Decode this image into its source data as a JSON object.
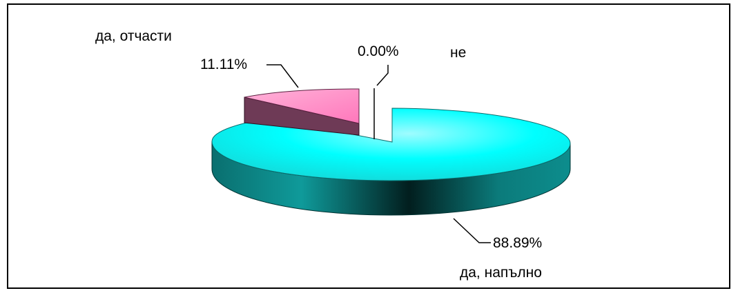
{
  "chart_data": {
    "type": "pie",
    "style": "3d-exploded",
    "categories": [
      "да, напълно",
      "да, отчасти",
      "не"
    ],
    "values": [
      88.89,
      11.11,
      0.0
    ],
    "value_labels": [
      "88.89%",
      "11.11%",
      "0.00%"
    ],
    "colors": [
      "#00ffff",
      "#ff99cc",
      "#ffffff"
    ],
    "side_colors": [
      "#008080",
      "#7a3e5e",
      "#ffffff"
    ],
    "legend": "none"
  }
}
